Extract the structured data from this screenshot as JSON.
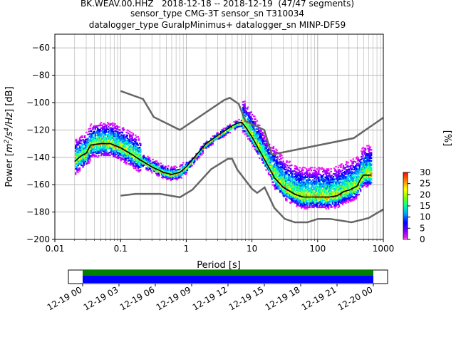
{
  "chart_data": {
    "type": "heatmap",
    "title": "BK.WEAV.00.HHZ   2018-12-18 -- 2018-12-19  (47/47 segments)",
    "subtitle_1": "sensor_type CMG-3T sensor_sn T310034",
    "subtitle_2": "datalogger_type GuralpMinimus+ datalogger_sn MINP-DF59",
    "xlabel": "Period [s]",
    "ylabel_prefix": "Power [",
    "ylabel_units": "m",
    "ylabel_full": "Power [m²/s⁴/Hz] [dB]",
    "x_scale": "log",
    "xlim": [
      0.01,
      1000
    ],
    "ylim": [
      -200,
      -50
    ],
    "x_ticks": [
      {
        "value": 0.01,
        "label": "0.01"
      },
      {
        "value": 0.1,
        "label": "0.1"
      },
      {
        "value": 1,
        "label": "1"
      },
      {
        "value": 10,
        "label": "10"
      },
      {
        "value": 100,
        "label": "100"
      },
      {
        "value": 1000,
        "label": "1000"
      }
    ],
    "y_ticks": [
      {
        "value": -60,
        "label": "−60"
      },
      {
        "value": -80,
        "label": "−80"
      },
      {
        "value": -100,
        "label": "−100"
      },
      {
        "value": -120,
        "label": "−120"
      },
      {
        "value": -140,
        "label": "−140"
      },
      {
        "value": -160,
        "label": "−160"
      },
      {
        "value": -180,
        "label": "−180"
      },
      {
        "value": -200,
        "label": "−200"
      }
    ],
    "grid": true,
    "noise_model_high": [
      [
        0.1,
        -91.5
      ],
      [
        0.22,
        -97.4
      ],
      [
        0.32,
        -110.5
      ],
      [
        0.8,
        -120
      ],
      [
        3.8,
        -98
      ],
      [
        4.6,
        -96.5
      ],
      [
        6.3,
        -101
      ],
      [
        7.9,
        -113.5
      ],
      [
        15.4,
        -120
      ],
      [
        20,
        -138
      ],
      [
        354,
        -126
      ],
      [
        1000,
        -111
      ]
    ],
    "noise_model_low": [
      [
        0.1,
        -168
      ],
      [
        0.17,
        -166.7
      ],
      [
        0.4,
        -166.7
      ],
      [
        0.8,
        -169.2
      ],
      [
        1.24,
        -163.7
      ],
      [
        2.4,
        -148.6
      ],
      [
        4.3,
        -141.1
      ],
      [
        5,
        -141.1
      ],
      [
        6,
        -149
      ],
      [
        10,
        -163
      ],
      [
        12,
        -166
      ],
      [
        15.6,
        -162
      ],
      [
        21.9,
        -177
      ],
      [
        31.6,
        -185
      ],
      [
        45,
        -187.5
      ],
      [
        70,
        -187.5
      ],
      [
        101,
        -185
      ],
      [
        154,
        -185
      ],
      [
        328,
        -187.5
      ],
      [
        600,
        -184.4
      ],
      [
        1000,
        -178
      ]
    ],
    "mode_curve": [
      [
        0.02,
        -143
      ],
      [
        0.025,
        -139
      ],
      [
        0.03,
        -137
      ],
      [
        0.035,
        -131
      ],
      [
        0.05,
        -130
      ],
      [
        0.07,
        -130
      ],
      [
        0.1,
        -133
      ],
      [
        0.15,
        -138
      ],
      [
        0.2,
        -142
      ],
      [
        0.3,
        -147
      ],
      [
        0.45,
        -151
      ],
      [
        0.6,
        -152.5
      ],
      [
        0.8,
        -151
      ],
      [
        1,
        -147
      ],
      [
        1.5,
        -137
      ],
      [
        2,
        -130
      ],
      [
        3,
        -124
      ],
      [
        4,
        -120
      ],
      [
        5,
        -117
      ],
      [
        6,
        -115
      ],
      [
        7,
        -114.5
      ],
      [
        8,
        -118
      ],
      [
        10,
        -125
      ],
      [
        13,
        -135
      ],
      [
        17,
        -145
      ],
      [
        22,
        -155
      ],
      [
        30,
        -162
      ],
      [
        45,
        -167
      ],
      [
        60,
        -169
      ],
      [
        100,
        -169
      ],
      [
        150,
        -169
      ],
      [
        200,
        -168
      ],
      [
        250,
        -165
      ],
      [
        300,
        -164
      ],
      [
        400,
        -161
      ],
      [
        450,
        -156
      ],
      [
        500,
        -153
      ],
      [
        650,
        -153
      ]
    ],
    "colorbar": {
      "label": "[%]",
      "ticks": [
        {
          "value": 0,
          "label": "0"
        },
        {
          "value": 5,
          "label": "5"
        },
        {
          "value": 10,
          "label": "10"
        },
        {
          "value": 15,
          "label": "15"
        },
        {
          "value": 20,
          "label": "20"
        },
        {
          "value": 25,
          "label": "25"
        },
        {
          "value": 30,
          "label": "30"
        }
      ],
      "range": [
        0,
        30
      ]
    },
    "coverage": {
      "ticks": [
        "12-19 00",
        "12-19 03",
        "12-19 06",
        "12-19 09",
        "12-19 12",
        "12-19 15",
        "12-19 18",
        "12-19 21",
        "12-20 00"
      ],
      "bar_colors": {
        "top": "#008000",
        "bottom": "#0000ff"
      }
    },
    "colors": {
      "noise_model": "#666666",
      "mode_curve": "#000000",
      "grid": "#b0b0b0"
    }
  }
}
